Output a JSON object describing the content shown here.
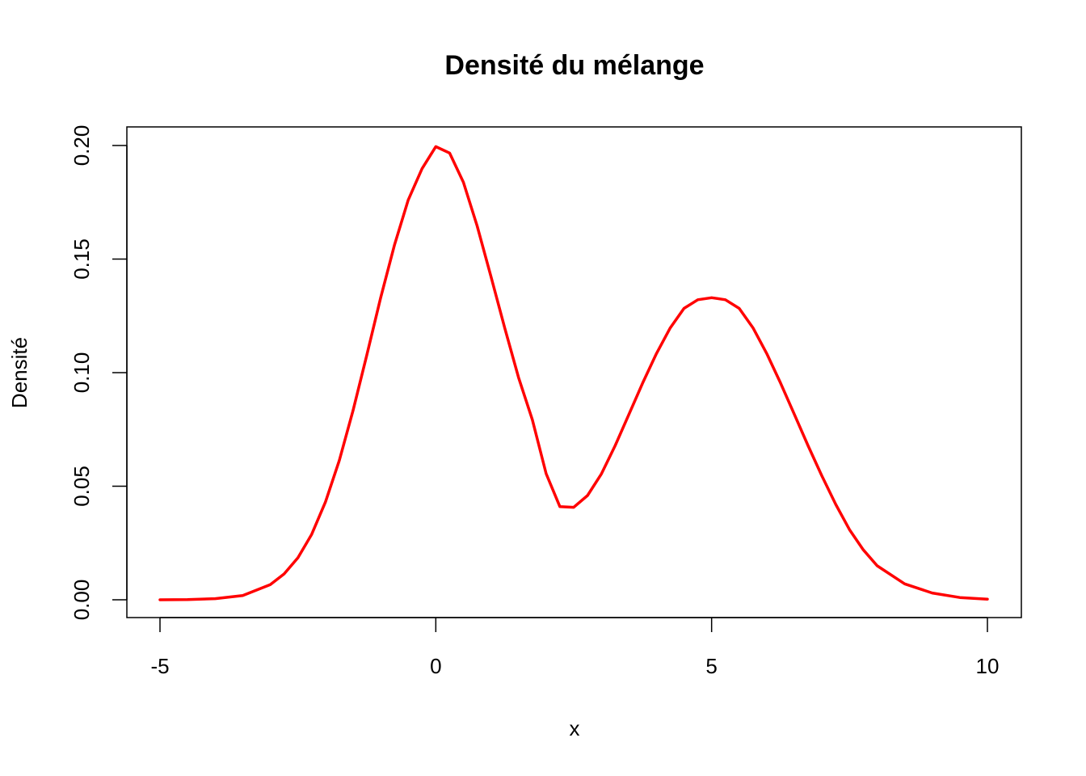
{
  "chart_data": {
    "type": "line",
    "title": "Densité du mélange",
    "xlabel": "x",
    "ylabel": "Densité",
    "xlim": [
      -5,
      10
    ],
    "ylim": [
      0,
      0.2
    ],
    "x_ticks": [
      -5,
      0,
      5,
      10
    ],
    "x_tick_labels": [
      "-5",
      "0",
      "5",
      "10"
    ],
    "y_ticks": [
      0,
      0.05,
      0.1,
      0.15,
      0.2
    ],
    "y_tick_labels": [
      "0.00",
      "0.05",
      "0.10",
      "0.15",
      "0.20"
    ],
    "grid": false,
    "legend": "none",
    "colors": {
      "series": "#ff0000",
      "axes": "#000000",
      "background": "#ffffff"
    },
    "series": [
      {
        "x": [
          -5,
          -4.5,
          -4,
          -3.5,
          -3,
          -2.75,
          -2.5,
          -2.25,
          -2,
          -1.75,
          -1.5,
          -1.25,
          -1,
          -0.75,
          -0.5,
          -0.25,
          0,
          0.25,
          0.5,
          0.75,
          1,
          1.25,
          1.5,
          1.75,
          2,
          2.25,
          2.5,
          2.75,
          3,
          3.25,
          3.5,
          3.75,
          4,
          4.25,
          4.5,
          4.75,
          5,
          5.25,
          5.5,
          5.75,
          6,
          6.25,
          6.5,
          6.75,
          7,
          7.25,
          7.5,
          7.75,
          8,
          8.5,
          9,
          9.5,
          10
        ],
        "values": [
          0.0,
          0.0001,
          0.0005,
          0.0019,
          0.0067,
          0.0114,
          0.0185,
          0.0288,
          0.0431,
          0.0613,
          0.0833,
          0.1078,
          0.133,
          0.1561,
          0.176,
          0.1898,
          0.1995,
          0.1967,
          0.1838,
          0.1646,
          0.1423,
          0.1196,
          0.0979,
          0.0793,
          0.0555,
          0.041,
          0.0407,
          0.0459,
          0.0553,
          0.0678,
          0.0816,
          0.0954,
          0.1084,
          0.1197,
          0.1283,
          0.1321,
          0.133,
          0.1321,
          0.1283,
          0.1197,
          0.1084,
          0.0954,
          0.0816,
          0.0678,
          0.0545,
          0.042,
          0.0309,
          0.022,
          0.015,
          0.007,
          0.003,
          0.001,
          0.0003
        ]
      }
    ]
  }
}
